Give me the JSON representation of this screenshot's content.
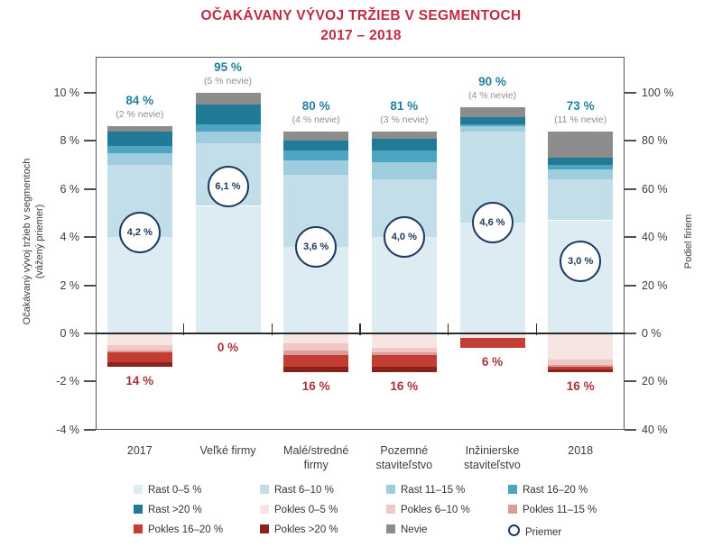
{
  "title": {
    "line1": "OČAKÁVANY VÝVOJ TRŽIEB V SEGMENTOCH",
    "line2": "2017 – 2018"
  },
  "colors": {
    "title": "#bf2b45",
    "growth_label": "#2380a0",
    "nevie_label": "#8f8f8f",
    "decline_label": "#ab3340",
    "average_circle_border": "#1f3a60",
    "average_text": "#1f3a60",
    "axis_text": "#3d3d3d"
  },
  "axes": {
    "left": {
      "title_line1": "Očakávaný vývoj tržieb v segmentoch",
      "title_line2": "(vážený priemer)",
      "tick_values": [
        10,
        8,
        6,
        4,
        2,
        0,
        -2,
        -4
      ],
      "tick_labels": [
        "10 %",
        "8 %",
        "6 %",
        "4 %",
        "2 %",
        "0 %",
        "-2 %",
        "-4 %"
      ]
    },
    "right": {
      "title": "Podiel firiem",
      "tick_labels": [
        "100 %",
        "80 %",
        "60 %",
        "40 %",
        "20 %",
        "0 %",
        "20 %",
        "40 %"
      ]
    }
  },
  "chart_data": {
    "type": "bar",
    "stacked": true,
    "categories": [
      "2017",
      "Veľké firmy",
      "Malé/stredné\nfirmy",
      "Pozemné\nstaviteľstvo",
      "Inžinierske\nstaviteľstvo",
      "2018"
    ],
    "series": [
      {
        "name": "Rast 0–5 %",
        "direction": "up",
        "color": "#ddecf3",
        "values": [
          40,
          53,
          36,
          40,
          46,
          47
        ]
      },
      {
        "name": "Rast 6–10 %",
        "direction": "up",
        "color": "#c2dfe9",
        "values": [
          30,
          26,
          30,
          24,
          38,
          17
        ]
      },
      {
        "name": "Rast 11–15 %",
        "direction": "up",
        "color": "#9fcddd",
        "values": [
          5,
          5,
          6,
          7,
          2,
          4
        ]
      },
      {
        "name": "Rast 16–20 %",
        "direction": "up",
        "color": "#4da5c2",
        "values": [
          3,
          3,
          4,
          5,
          1,
          2
        ]
      },
      {
        "name": "Rast >20 %",
        "direction": "up",
        "color": "#217a96",
        "values": [
          6,
          8,
          4,
          5,
          3,
          3
        ]
      },
      {
        "name": "Nevie",
        "direction": "up",
        "color": "#8c8c8c",
        "values": [
          2,
          5,
          4,
          3,
          4,
          11
        ]
      },
      {
        "name": "Pokles 0–5 %",
        "direction": "down",
        "color": "#f7e5e4",
        "values": [
          5,
          0,
          4,
          6,
          2,
          11
        ]
      },
      {
        "name": "Pokles 6–10 %",
        "direction": "down",
        "color": "#efc8c5",
        "values": [
          2,
          0,
          3,
          2,
          0,
          2
        ]
      },
      {
        "name": "Pokles 11–15 %",
        "direction": "down",
        "color": "#d89d9c",
        "values": [
          1,
          0,
          2,
          1,
          0,
          1
        ]
      },
      {
        "name": "Pokles 16–20 %",
        "direction": "down",
        "color": "#c33d33",
        "values": [
          4,
          0,
          5,
          5,
          4,
          1
        ]
      },
      {
        "name": "Pokles >20 %",
        "direction": "down",
        "color": "#8a221d",
        "values": [
          2,
          0,
          2,
          2,
          0,
          1
        ]
      }
    ],
    "averages": {
      "values": [
        4.2,
        6.1,
        3.6,
        4.0,
        4.6,
        3.0
      ],
      "labels": [
        "4,2 %",
        "6,1 %",
        "3,6 %",
        "4,0 %",
        "4,6 %",
        "3,0 %"
      ]
    },
    "growth_share_labels": [
      "84 %",
      "95 %",
      "80 %",
      "81 %",
      "90 %",
      "73 %"
    ],
    "nevie_share_labels": [
      "(2 % nevie)",
      "(5 % nevie)",
      "(4 % nevie)",
      "(3 % nevie)",
      "(4 % nevie)",
      "(11 % nevie)"
    ],
    "decline_share_labels": [
      "14 %",
      "0 %",
      "16 %",
      "16 %",
      "6 %",
      "16 %"
    ],
    "ylabel_left": "Očakávaný vývoj tržieb v segmentoch (vážený priemer)",
    "ylabel_right": "Podiel firiem",
    "ylim_left": [
      -4,
      11.5
    ],
    "legend_position": "bottom"
  },
  "legend": {
    "items": [
      {
        "label": "Rast 0–5 %",
        "type": "swatch",
        "color": "#ddecf3"
      },
      {
        "label": "Rast 6–10 %",
        "type": "swatch",
        "color": "#c2dfe9"
      },
      {
        "label": "Rast 11–15 %",
        "type": "swatch",
        "color": "#9fcddd"
      },
      {
        "label": "Rast 16–20 %",
        "type": "swatch",
        "color": "#4da5c2"
      },
      {
        "label": "Rast >20 %",
        "type": "swatch",
        "color": "#217a96"
      },
      {
        "label": "Pokles 0–5 %",
        "type": "swatch",
        "color": "#f7e5e4"
      },
      {
        "label": "Pokles 6–10 %",
        "type": "swatch",
        "color": "#efc8c5"
      },
      {
        "label": "Pokles 11–15 %",
        "type": "swatch",
        "color": "#d89d9c"
      },
      {
        "label": "Pokles 16–20 %",
        "type": "swatch",
        "color": "#c33d33"
      },
      {
        "label": "Pokles >20 %",
        "type": "swatch",
        "color": "#8a221d"
      },
      {
        "label": "Nevie",
        "type": "swatch",
        "color": "#8c8c8c"
      },
      {
        "label": "Priemer",
        "type": "circle",
        "color": "#1f3a60"
      }
    ]
  }
}
